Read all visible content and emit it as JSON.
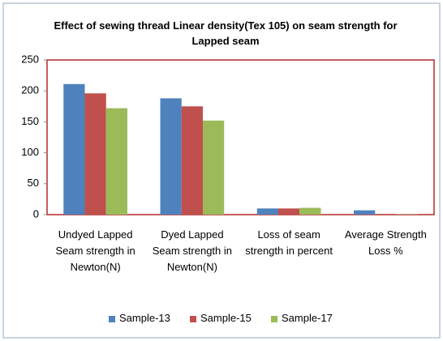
{
  "chart_data": {
    "type": "bar",
    "title": "Effect of sewing thread Linear density(Tex 105) on seam strength for Lapped   seam",
    "categories": [
      "Undyed Lapped Seam strength in Newton(N)",
      "Dyed Lapped Seam strength in Newton(N)",
      "Loss of seam strength in percent",
      "Average Strength Loss %"
    ],
    "series": [
      {
        "name": "Sample-13",
        "color": "#4f81bd",
        "values": [
          211,
          188,
          10,
          7
        ]
      },
      {
        "name": "Sample-15",
        "color": "#c0504d",
        "values": [
          196,
          175,
          10,
          1
        ]
      },
      {
        "name": "Sample-17",
        "color": "#9bbb59",
        "values": [
          172,
          152,
          11,
          0.5
        ]
      }
    ],
    "ylim": [
      0,
      250
    ],
    "yticks": [
      0,
      50,
      100,
      150,
      200,
      250
    ],
    "grid": false,
    "legend": "bottom"
  }
}
